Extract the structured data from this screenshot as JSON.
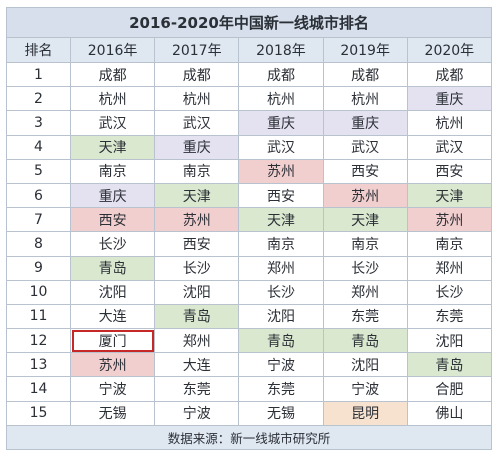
{
  "title": "2016-2020年中国新一线城市排名",
  "headers": [
    "排名",
    "2016年",
    "2017年",
    "2018年",
    "2019年",
    "2020年"
  ],
  "rows": [
    {
      "rank": "1",
      "cities": [
        "成都",
        "成都",
        "成都",
        "成都",
        "成都"
      ]
    },
    {
      "rank": "2",
      "cities": [
        "杭州",
        "杭州",
        "杭州",
        "杭州",
        "重庆"
      ]
    },
    {
      "rank": "3",
      "cities": [
        "武汉",
        "武汉",
        "重庆",
        "重庆",
        "杭州"
      ]
    },
    {
      "rank": "4",
      "cities": [
        "天津",
        "重庆",
        "武汉",
        "武汉",
        "武汉"
      ]
    },
    {
      "rank": "5",
      "cities": [
        "南京",
        "南京",
        "苏州",
        "西安",
        "西安"
      ]
    },
    {
      "rank": "6",
      "cities": [
        "重庆",
        "天津",
        "西安",
        "苏州",
        "天津"
      ]
    },
    {
      "rank": "7",
      "cities": [
        "西安",
        "苏州",
        "天津",
        "天津",
        "苏州"
      ]
    },
    {
      "rank": "8",
      "cities": [
        "长沙",
        "西安",
        "南京",
        "南京",
        "南京"
      ]
    },
    {
      "rank": "9",
      "cities": [
        "青岛",
        "长沙",
        "郑州",
        "长沙",
        "郑州"
      ]
    },
    {
      "rank": "10",
      "cities": [
        "沈阳",
        "沈阳",
        "长沙",
        "郑州",
        "长沙"
      ]
    },
    {
      "rank": "11",
      "cities": [
        "大连",
        "青岛",
        "沈阳",
        "东莞",
        "东莞"
      ]
    },
    {
      "rank": "12",
      "cities": [
        "厦门",
        "郑州",
        "青岛",
        "青岛",
        "沈阳"
      ]
    },
    {
      "rank": "13",
      "cities": [
        "苏州",
        "大连",
        "宁波",
        "沈阳",
        "青岛"
      ]
    },
    {
      "rank": "14",
      "cities": [
        "宁波",
        "东莞",
        "东莞",
        "宁波",
        "合肥"
      ]
    },
    {
      "rank": "15",
      "cities": [
        "无锡",
        "宁波",
        "无锡",
        "昆明",
        "佛山"
      ]
    }
  ],
  "highlight_colors": {
    "green": "#d9e8cf",
    "red": "#f2cfcf",
    "purple": "#e4e2f1",
    "peach": "#f7e2d0",
    "box_outline": "#c62828"
  },
  "highlights": [
    {
      "row": 1,
      "col": 4,
      "style": "purple"
    },
    {
      "row": 2,
      "col": 2,
      "style": "purple"
    },
    {
      "row": 2,
      "col": 3,
      "style": "purple"
    },
    {
      "row": 3,
      "col": 0,
      "style": "green"
    },
    {
      "row": 3,
      "col": 1,
      "style": "purple"
    },
    {
      "row": 4,
      "col": 2,
      "style": "red"
    },
    {
      "row": 5,
      "col": 0,
      "style": "purple"
    },
    {
      "row": 5,
      "col": 1,
      "style": "green"
    },
    {
      "row": 5,
      "col": 3,
      "style": "red"
    },
    {
      "row": 5,
      "col": 4,
      "style": "green"
    },
    {
      "row": 6,
      "col": 0,
      "style": "red"
    },
    {
      "row": 6,
      "col": 1,
      "style": "red"
    },
    {
      "row": 6,
      "col": 2,
      "style": "green"
    },
    {
      "row": 6,
      "col": 3,
      "style": "green"
    },
    {
      "row": 6,
      "col": 4,
      "style": "red"
    },
    {
      "row": 8,
      "col": 0,
      "style": "green"
    },
    {
      "row": 10,
      "col": 1,
      "style": "green"
    },
    {
      "row": 11,
      "col": 0,
      "style": "box"
    },
    {
      "row": 11,
      "col": 2,
      "style": "green"
    },
    {
      "row": 11,
      "col": 3,
      "style": "green"
    },
    {
      "row": 12,
      "col": 0,
      "style": "red"
    },
    {
      "row": 12,
      "col": 4,
      "style": "green"
    },
    {
      "row": 14,
      "col": 3,
      "style": "peach"
    }
  ],
  "footer": "数据来源：新一线城市研究所"
}
